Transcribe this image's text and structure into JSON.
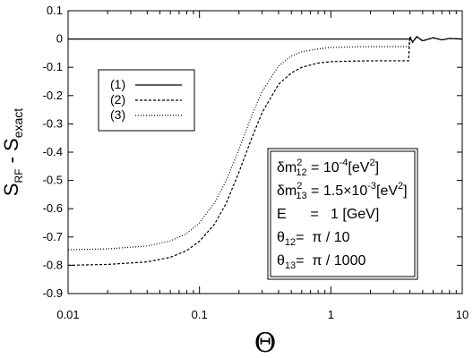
{
  "chart_data": {
    "type": "line",
    "xlabel": "Θ",
    "ylabel_main": "S",
    "ylabel_sub1": "RF",
    "ylabel_mid": " - S",
    "ylabel_sub2": "exact",
    "xscale": "log",
    "xlim": [
      0.01,
      10
    ],
    "ylim": [
      -0.9,
      0.1
    ],
    "xticks": [
      {
        "value": 0.01,
        "label": "0.01"
      },
      {
        "value": 0.1,
        "label": "0.1"
      },
      {
        "value": 1,
        "label": "1"
      },
      {
        "value": 10,
        "label": "10"
      }
    ],
    "yticks": [
      {
        "value": 0.1,
        "label": "0.1"
      },
      {
        "value": 0,
        "label": "0"
      },
      {
        "value": -0.1,
        "label": "-0.1"
      },
      {
        "value": -0.2,
        "label": "-0.2"
      },
      {
        "value": -0.3,
        "label": "-0.3"
      },
      {
        "value": -0.4,
        "label": "-0.4"
      },
      {
        "value": -0.5,
        "label": "-0.5"
      },
      {
        "value": -0.6,
        "label": "-0.6"
      },
      {
        "value": -0.7,
        "label": "-0.7"
      },
      {
        "value": -0.8,
        "label": "-0.8"
      },
      {
        "value": -0.9,
        "label": "-0.9"
      }
    ],
    "grid": false,
    "legend_position": "top-left",
    "series": [
      {
        "name": "(1)",
        "style": "solid",
        "x": [
          0.01,
          0.1,
          1,
          3.9,
          4.0,
          4.2,
          4.5,
          5,
          6,
          7,
          8,
          10
        ],
        "y": [
          0,
          0,
          0,
          0,
          0.002,
          -0.01,
          0.008,
          -0.006,
          0.004,
          -0.003,
          0.002,
          0
        ]
      },
      {
        "name": "(2)",
        "style": "dashed",
        "x": [
          0.01,
          0.02,
          0.04,
          0.06,
          0.08,
          0.1,
          0.13,
          0.16,
          0.2,
          0.25,
          0.3,
          0.4,
          0.5,
          0.6,
          0.8,
          1,
          1.5,
          2,
          3,
          3.9,
          4.0,
          4.2,
          4.5,
          5,
          6,
          7,
          8,
          10
        ],
        "y": [
          -0.8,
          -0.797,
          -0.788,
          -0.772,
          -0.748,
          -0.715,
          -0.655,
          -0.58,
          -0.47,
          -0.35,
          -0.26,
          -0.16,
          -0.12,
          -0.1,
          -0.085,
          -0.08,
          -0.078,
          -0.077,
          -0.077,
          -0.077,
          0.01,
          -0.012,
          0.009,
          -0.007,
          0.005,
          -0.003,
          0.002,
          0
        ]
      },
      {
        "name": "(3)",
        "style": "dotted",
        "x": [
          0.01,
          0.02,
          0.04,
          0.06,
          0.08,
          0.1,
          0.13,
          0.16,
          0.2,
          0.25,
          0.3,
          0.4,
          0.5,
          0.6,
          0.8,
          1,
          1.5,
          2,
          3,
          3.9,
          4.0,
          4.2,
          4.5,
          5,
          6,
          7,
          8,
          10
        ],
        "y": [
          -0.745,
          -0.742,
          -0.732,
          -0.714,
          -0.688,
          -0.65,
          -0.58,
          -0.5,
          -0.39,
          -0.27,
          -0.185,
          -0.095,
          -0.06,
          -0.045,
          -0.035,
          -0.03,
          -0.028,
          -0.027,
          -0.027,
          -0.027,
          0.008,
          -0.011,
          0.008,
          -0.006,
          0.004,
          -0.003,
          0.002,
          0
        ]
      }
    ],
    "parameters_box": {
      "line1": {
        "prefix": "δm",
        "sup": "2",
        "sub": "12",
        "rest": " = 10",
        "exp": "-4",
        "unit": "[eV",
        "unit_sup": "2",
        "close": "]"
      },
      "line2": {
        "prefix": "δm",
        "sup": "2",
        "sub": "13",
        "rest": " = 1.5×10",
        "exp": "-3",
        "unit": "[eV",
        "unit_sup": "2",
        "close": "]"
      },
      "line3": {
        "text": "E      =   1 [GeV]"
      },
      "line4": {
        "prefix": "θ",
        "sub": "12",
        "rest": "=  π / 10"
      },
      "line5": {
        "prefix": "θ",
        "sub": "13",
        "rest": "=  π / 1000"
      }
    },
    "colors": {
      "lines": "#000000",
      "background": "#ffffff"
    }
  }
}
